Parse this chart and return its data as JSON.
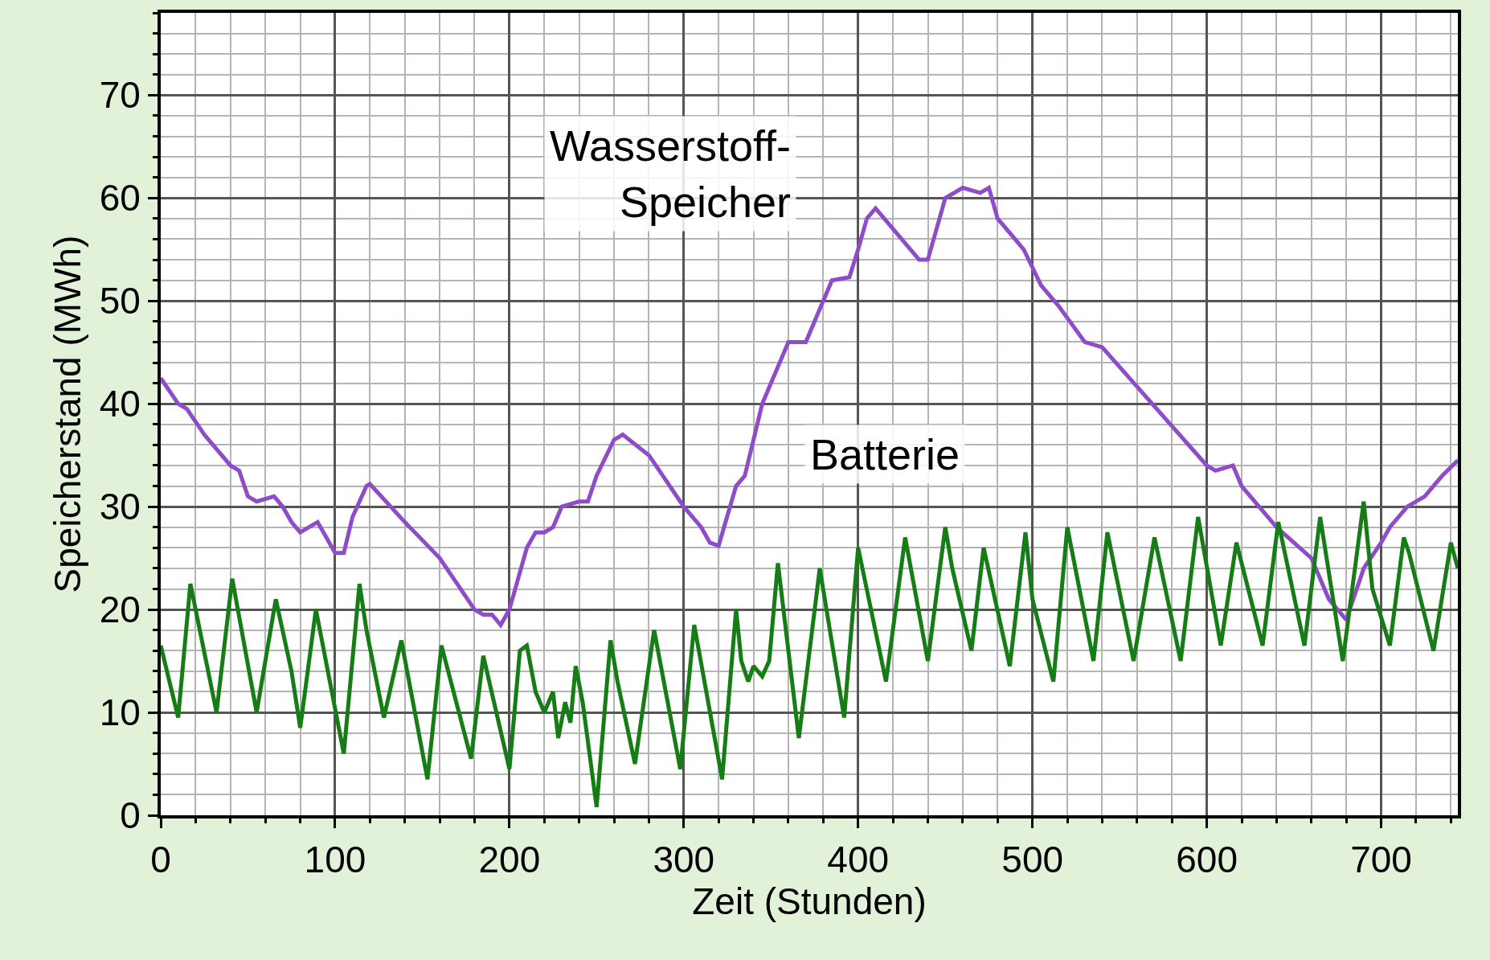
{
  "chart_data": {
    "type": "line",
    "xlabel": "Zeit (Stunden)",
    "ylabel": "Speicherstand (MWh)",
    "xlim": [
      0,
      744
    ],
    "ylim": [
      0,
      78
    ],
    "xticks": [
      0,
      100,
      200,
      300,
      400,
      500,
      600,
      700
    ],
    "yticks": [
      0,
      10,
      20,
      30,
      40,
      50,
      60,
      70
    ],
    "grid": true,
    "legend": false,
    "marker": "none",
    "line_style": "solid",
    "series": [
      {
        "name": "Wasserstoff-\nSpeicher",
        "color": "#8e4cc8",
        "x": [
          0,
          10,
          15,
          25,
          40,
          45,
          50,
          55,
          65,
          70,
          75,
          80,
          90,
          95,
          100,
          105,
          110,
          118,
          120,
          140,
          160,
          170,
          180,
          185,
          190,
          195,
          200,
          210,
          215,
          220,
          225,
          230,
          240,
          245,
          250,
          260,
          265,
          280,
          300,
          310,
          315,
          320,
          330,
          335,
          345,
          360,
          370,
          385,
          395,
          400,
          405,
          410,
          420,
          435,
          440,
          450,
          460,
          470,
          475,
          480,
          490,
          495,
          505,
          515,
          530,
          540,
          600,
          605,
          615,
          620,
          635,
          640,
          660,
          670,
          680,
          690,
          700,
          705,
          715,
          725,
          735,
          744
        ],
        "values": [
          42.5,
          40,
          39.5,
          37,
          34,
          33.5,
          31,
          30.5,
          31,
          30,
          28.5,
          27.5,
          28.5,
          27,
          25.5,
          25.5,
          29,
          32,
          32.2,
          28.5,
          25,
          22.5,
          20,
          19.5,
          19.5,
          18.5,
          20,
          26,
          27.5,
          27.5,
          28,
          30,
          30.5,
          30.5,
          33,
          36.5,
          37,
          35,
          30,
          28,
          26.5,
          26.2,
          32,
          33,
          40,
          46,
          46,
          52,
          52.3,
          55,
          58,
          59,
          57,
          54,
          54,
          60,
          61,
          60.5,
          61,
          58,
          56,
          55,
          51.5,
          49.5,
          46,
          45.5,
          34,
          33.5,
          34,
          32,
          29,
          28,
          25,
          21,
          19,
          24,
          26.5,
          28,
          30,
          31,
          33,
          34.5
        ]
      },
      {
        "name": "Batterie",
        "color": "#167c16",
        "x": [
          0,
          10,
          17,
          32,
          41,
          55,
          66,
          75,
          80,
          89,
          105,
          114,
          118,
          128,
          138,
          153,
          161,
          178,
          185,
          200,
          206,
          210,
          215,
          220,
          225,
          228,
          232,
          235,
          238,
          242,
          250,
          258,
          262,
          272,
          283,
          298,
          306,
          322,
          330,
          333,
          337,
          340,
          345,
          349,
          354,
          366,
          378,
          392,
          400,
          416,
          427,
          440,
          450,
          454,
          465,
          472,
          487,
          496,
          500,
          512,
          520,
          535,
          543,
          558,
          570,
          585,
          595,
          608,
          617,
          632,
          641,
          656,
          665,
          678,
          690,
          695,
          705,
          713,
          716,
          730,
          740,
          744
        ],
        "values": [
          16.5,
          9.5,
          22.5,
          10,
          23,
          10,
          21,
          14,
          8.5,
          20,
          6,
          22.5,
          18,
          9.5,
          17,
          3.5,
          16.5,
          5.5,
          15.5,
          4.5,
          16,
          16.5,
          12,
          10,
          12,
          7.5,
          11,
          9,
          14.5,
          11,
          0.8,
          17,
          13,
          5,
          18,
          4.5,
          18.5,
          3.5,
          20,
          15,
          13,
          14.5,
          13.5,
          15,
          24.5,
          7.5,
          24,
          9.5,
          26,
          13,
          27,
          15,
          28,
          24,
          16,
          26,
          14.5,
          27.5,
          21,
          13,
          28,
          15,
          27.5,
          15,
          27,
          15,
          29,
          16.5,
          26.5,
          16.5,
          28.5,
          16.5,
          29,
          15,
          30.5,
          22,
          16.5,
          27,
          25.5,
          16,
          26.5,
          24
        ]
      }
    ]
  }
}
